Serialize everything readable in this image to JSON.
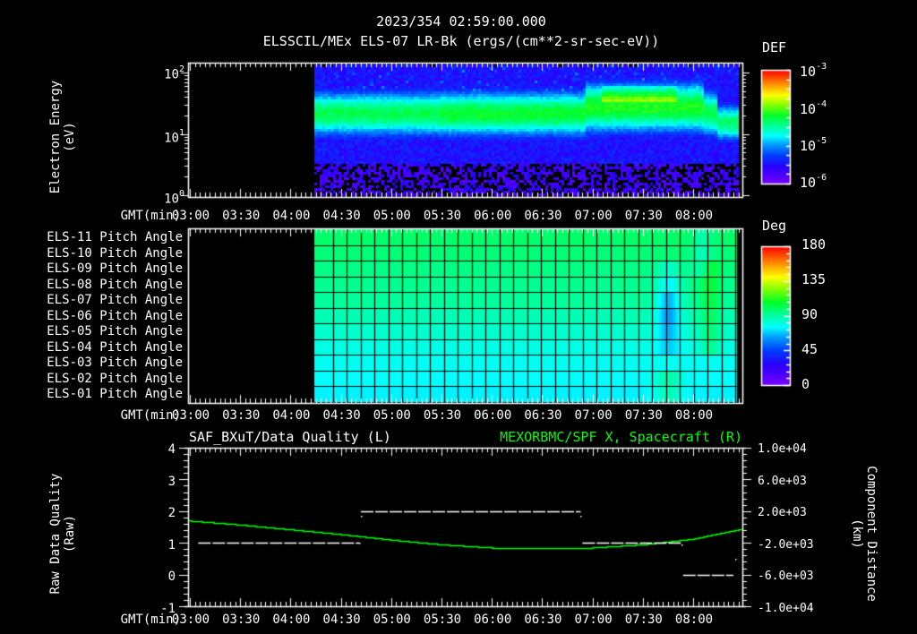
{
  "header": {
    "timestamp": "2023/354 02:59:00.000",
    "title": "ELSSCIL/MEx ELS-07 LR-Bk  (ergs/(cm**2-sr-sec-eV))"
  },
  "time_axis": {
    "label": "GMT(min)",
    "ticks": [
      "03:00",
      "03:30",
      "04:00",
      "04:30",
      "05:00",
      "05:30",
      "06:00",
      "06:30",
      "07:00",
      "07:30",
      "08:00"
    ]
  },
  "panel1": {
    "ylabel_line1": "Electron Energy",
    "ylabel_line2": "(eV)",
    "yticks": [
      {
        "base": "10",
        "exp": "2"
      },
      {
        "base": "10",
        "exp": "1"
      },
      {
        "base": "10",
        "exp": "0"
      }
    ],
    "colorbar": {
      "title": "DEF",
      "ticks": [
        {
          "base": "10",
          "exp": "-3"
        },
        {
          "base": "10",
          "exp": "-4"
        },
        {
          "base": "10",
          "exp": "-5"
        },
        {
          "base": "10",
          "exp": "-6"
        }
      ]
    }
  },
  "panel2": {
    "row_labels": [
      "ELS-11 Pitch Angle",
      "ELS-10 Pitch Angle",
      "ELS-09 Pitch Angle",
      "ELS-08 Pitch Angle",
      "ELS-07 Pitch Angle",
      "ELS-06 Pitch Angle",
      "ELS-05 Pitch Angle",
      "ELS-04 Pitch Angle",
      "ELS-03 Pitch Angle",
      "ELS-02 Pitch Angle",
      "ELS-01 Pitch Angle"
    ],
    "colorbar": {
      "title": "Deg",
      "ticks": [
        "180",
        "135",
        "90",
        "45",
        "0"
      ]
    }
  },
  "panel3": {
    "left_title": "SAF_BXuT/Data Quality (L)",
    "right_title": "MEXORBMC/SPF X, Spacecraft (R)",
    "right_title_color": "#00ff00",
    "ylabel_left_line1": "Raw Data Quality",
    "ylabel_left_line2": "(Raw)",
    "ylabel_right_line1": "Component Distance",
    "ylabel_right_line2": "(km)",
    "yticks_left": [
      "4",
      "3",
      "2",
      "1",
      "0",
      "-1"
    ],
    "yticks_right": [
      "1.0e+04",
      "6.0e+03",
      "2.0e+03",
      "-2.0e+03",
      "-6.0e+03",
      "-1.0e+04"
    ]
  },
  "chart_data": [
    {
      "type": "heatmap",
      "title": "ELSSCIL/MEx ELS-07 LR-Bk (ergs/(cm**2-sr-sec-eV))",
      "xlabel": "GMT(min)",
      "ylabel": "Electron Energy (eV)",
      "yscale": "log",
      "ylim": [
        1,
        150
      ],
      "xlim": [
        "02:59",
        "08:30"
      ],
      "data_start": "04:14",
      "data_end": "08:26",
      "colorbar": {
        "label": "DEF",
        "scale": "log",
        "range": [
          1e-06,
          0.001
        ]
      },
      "description": "Peak DEF band ~10^-4.3 between 15-40 eV; enhancement to ~10^-3.7 at 50-60 eV around 07:10-07:50; sharp drop after 08:15 with band shifting to 10-30 eV"
    },
    {
      "type": "heatmap",
      "title": "ELS Pitch Angle",
      "xlabel": "GMT(min)",
      "categories": [
        "ELS-11",
        "ELS-10",
        "ELS-09",
        "ELS-08",
        "ELS-07",
        "ELS-06",
        "ELS-05",
        "ELS-04",
        "ELS-03",
        "ELS-02",
        "ELS-01"
      ],
      "colorbar": {
        "label": "Deg",
        "range": [
          0,
          180
        ]
      },
      "data_start": "04:14",
      "data_end": "08:26",
      "approx_values_deg": [
        100,
        98,
        96,
        94,
        92,
        88,
        84,
        80,
        78,
        76,
        74
      ],
      "description": "Pitch angles ~75-100 deg; near 07:45 ELS-06..ELS-08 dip to ~60 deg; near 08:10 ELS-07..ELS-05 rise to ~100 deg"
    },
    {
      "type": "line",
      "title_left": "SAF_BXuT/Data Quality (L)",
      "title_right": "MEXORBMC/SPF X, Spacecraft (R)",
      "xlabel": "GMT(min)",
      "ylabel_left": "Raw Data Quality (Raw)",
      "ylabel_right": "Component Distance (km)",
      "ylim_left": [
        -1,
        4
      ],
      "ylim_right": [
        -10000,
        10000
      ],
      "series": [
        {
          "name": "Data Quality",
          "axis": "left",
          "color": "#ffffff",
          "style": "dashed",
          "segments": [
            {
              "x_start": "03:05",
              "x_end": "04:41",
              "value": 1
            },
            {
              "x_start": "04:42",
              "x_end": "06:53",
              "value": 2
            },
            {
              "x_start": "06:54",
              "x_end": "07:53",
              "value": 1
            },
            {
              "x_start": "07:54",
              "x_end": "08:24",
              "value": 0
            }
          ]
        },
        {
          "name": "SPF X Spacecraft",
          "axis": "right",
          "color": "#00ff00",
          "x": [
            "03:00",
            "03:30",
            "04:00",
            "04:30",
            "05:00",
            "05:30",
            "06:00",
            "06:30",
            "07:00",
            "07:30",
            "08:00",
            "08:30"
          ],
          "values": [
            800,
            300,
            -300,
            -900,
            -1600,
            -2200,
            -2600,
            -2700,
            -2600,
            -2200,
            -1500,
            -200
          ]
        }
      ]
    }
  ]
}
